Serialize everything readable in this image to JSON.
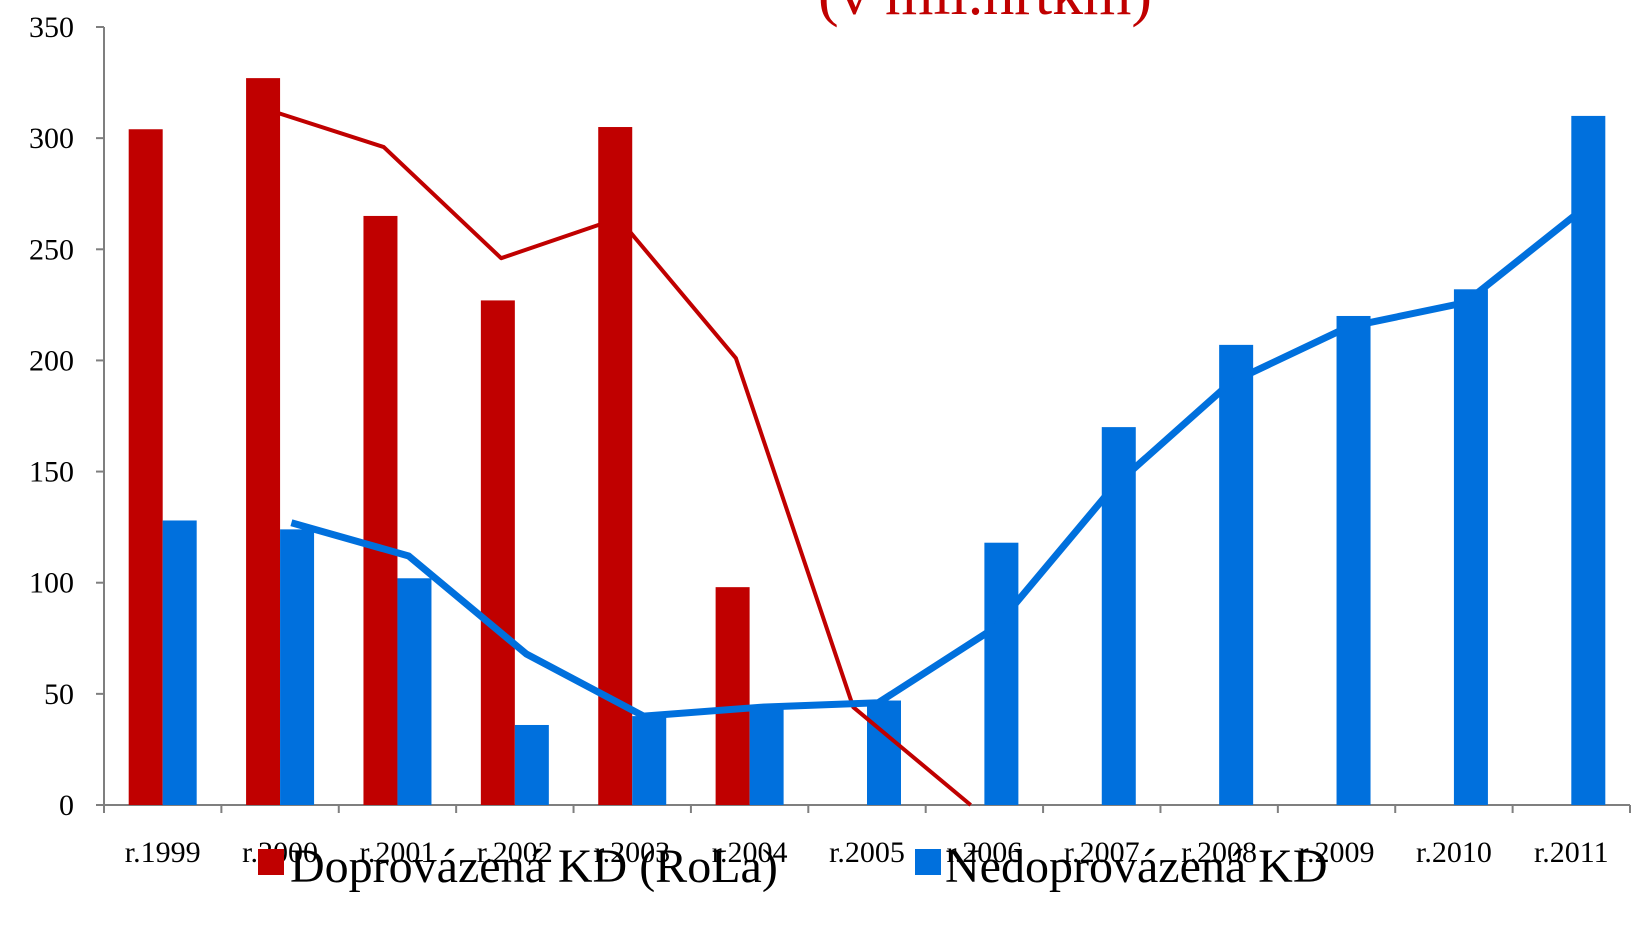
{
  "chart_data": {
    "type": "bar",
    "title": "(v mil.hrtkm)",
    "xlabel": "",
    "ylabel": "",
    "ylim": [
      0,
      350
    ],
    "yticks": [
      0,
      50,
      100,
      150,
      200,
      250,
      300,
      350
    ],
    "grid": false,
    "legend": "bottom",
    "categories": [
      "r.1999",
      "r.2000",
      "r.2001",
      "r.2002",
      "r.2003",
      "r.2004",
      "r.2005",
      "r.2006",
      "r.2007",
      "r.2008",
      "r.2009",
      "r.2010",
      "r.2011"
    ],
    "series": [
      {
        "name": "Doprovázená KD (RoLa)",
        "color": "#c00000",
        "values": [
          304,
          327,
          265,
          227,
          305,
          98,
          0,
          0,
          0,
          0,
          0,
          0,
          0
        ]
      },
      {
        "name": "Nedoprovázená KD",
        "color": "#0070dd",
        "values": [
          128,
          124,
          102,
          36,
          40,
          45,
          47,
          118,
          170,
          207,
          220,
          232,
          310
        ]
      }
    ],
    "trendlines": [
      {
        "series": "Doprovázená KD (RoLa)",
        "color": "#c00000",
        "x_from_index": 1,
        "values": [
          313,
          296,
          246,
          264,
          201,
          44,
          0
        ]
      },
      {
        "series": "Nedoprovázená KD",
        "color": "#0070dd",
        "x_from_index": 1,
        "values": [
          127,
          112,
          68,
          40,
          44,
          46,
          80,
          143,
          190,
          215,
          226,
          268
        ]
      }
    ]
  }
}
